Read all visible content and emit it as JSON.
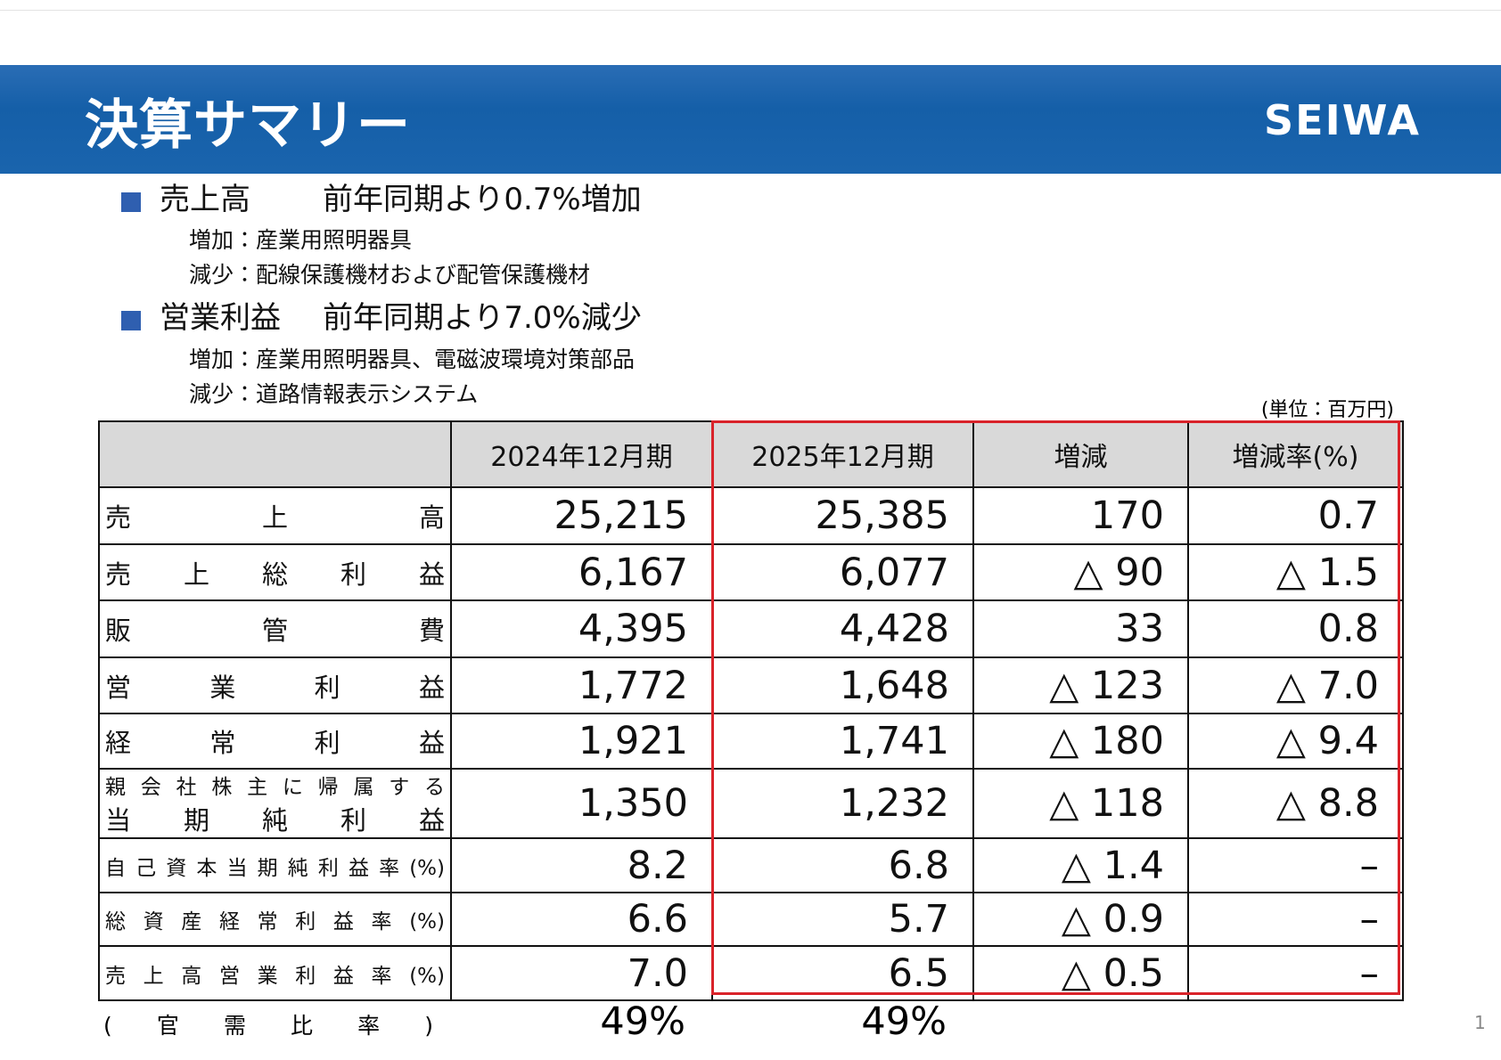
{
  "header": {
    "title": "決算サマリー",
    "logo": "SEIWA"
  },
  "highlights": [
    {
      "heading": "売上高",
      "summary": "前年同期より0.7%増加",
      "details": [
        "増加：産業用照明器具",
        "減少：配線保護機材および配管保護機材"
      ]
    },
    {
      "heading": "営業利益",
      "summary": "前年同期より7.0%減少",
      "details": [
        "増加：産業用照明器具、電磁波環境対策部品",
        "減少：道路情報表示システム"
      ]
    }
  ],
  "table": {
    "unit": "(単位：百万円)",
    "columns": [
      "2024年12月期",
      "2025年12月期",
      "増減",
      "増減率(%)"
    ],
    "rows": [
      {
        "label": "売上高",
        "values": [
          "25,215",
          "25,385",
          "170",
          "0.7"
        ]
      },
      {
        "label": "売上総利益",
        "values": [
          "6,167",
          "6,077",
          "△ 90",
          "△ 1.5"
        ]
      },
      {
        "label": "販管費",
        "values": [
          "4,395",
          "4,428",
          "33",
          "0.8"
        ]
      },
      {
        "label": "営業利益",
        "values": [
          "1,772",
          "1,648",
          "△ 123",
          "△ 7.0"
        ]
      },
      {
        "label": "経常利益",
        "values": [
          "1,921",
          "1,741",
          "△ 180",
          "△ 9.4"
        ]
      },
      {
        "label": [
          "親会社株主に帰属する",
          "当期純利益"
        ],
        "values": [
          "1,350",
          "1,232",
          "△ 118",
          "△ 8.8"
        ]
      },
      {
        "label": "自己資本当期純利益率(%)",
        "values": [
          "8.2",
          "6.8",
          "△ 1.4",
          "–"
        ]
      },
      {
        "label": "総資産経常利益率(%)",
        "values": [
          "6.6",
          "5.7",
          "△ 0.9",
          "–"
        ]
      },
      {
        "label": "売上高営業利益率(%)",
        "values": [
          "7.0",
          "6.5",
          "△ 0.5",
          "–"
        ]
      }
    ],
    "footer": {
      "label": "(官需比率)",
      "values": [
        "49%",
        "49%"
      ]
    }
  },
  "page_number": "1"
}
